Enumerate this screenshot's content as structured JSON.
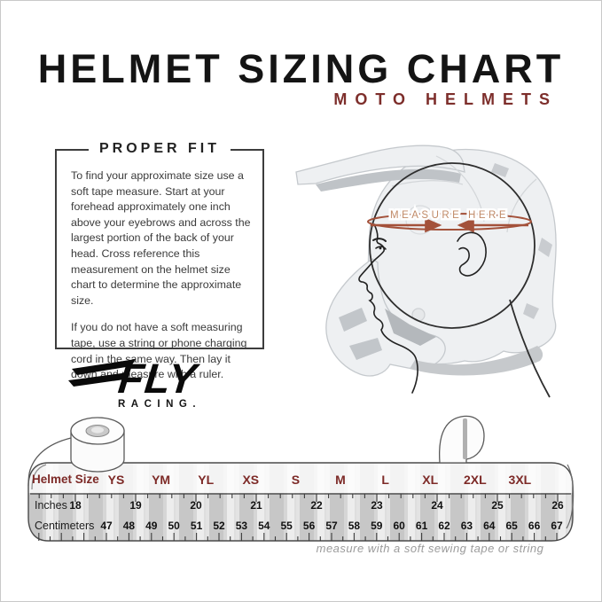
{
  "header": {
    "title": "HELMET SIZING CHART",
    "subtitle": "MOTO HELMETS"
  },
  "proper_fit": {
    "heading": "PROPER FIT",
    "body": [
      "To find your approximate size use a soft tape measure. Start at your forehead approximately one inch above your eyebrows and across the largest portion of the back of your head. Cross reference this measurement on the helmet size chart to determine the approximate size.",
      "If you do not have a soft measuring tape, use a string or phone charging cord in the same way. Then lay it down and measure with a ruler."
    ]
  },
  "brand": {
    "name": "FLY",
    "tagline": "RACING."
  },
  "illustration": {
    "measure_label": "MEASURE HERE"
  },
  "tape": {
    "caption": "measure with a soft sewing tape or string"
  },
  "chart_data": {
    "type": "table",
    "title": "Helmet Sizing Chart — Moto Helmets",
    "row_labels": [
      "Helmet Size",
      "Inches",
      "Centimeters"
    ],
    "sizes": [
      "YS",
      "YM",
      "YL",
      "XS",
      "S",
      "M",
      "L",
      "XL",
      "2XL",
      "3XL"
    ],
    "inches": [
      "18",
      "19",
      "20",
      "21",
      "22",
      "23",
      "24",
      "25",
      "26"
    ],
    "centimeters": [
      "47",
      "48",
      "49",
      "50",
      "51",
      "52",
      "53",
      "54",
      "55",
      "56",
      "57",
      "58",
      "59",
      "60",
      "61",
      "62",
      "63",
      "64",
      "65",
      "66",
      "67"
    ]
  },
  "colors": {
    "maroon": "#7d2e2b",
    "measure_line": "#a3513a",
    "measure_text": "#c08a67"
  }
}
